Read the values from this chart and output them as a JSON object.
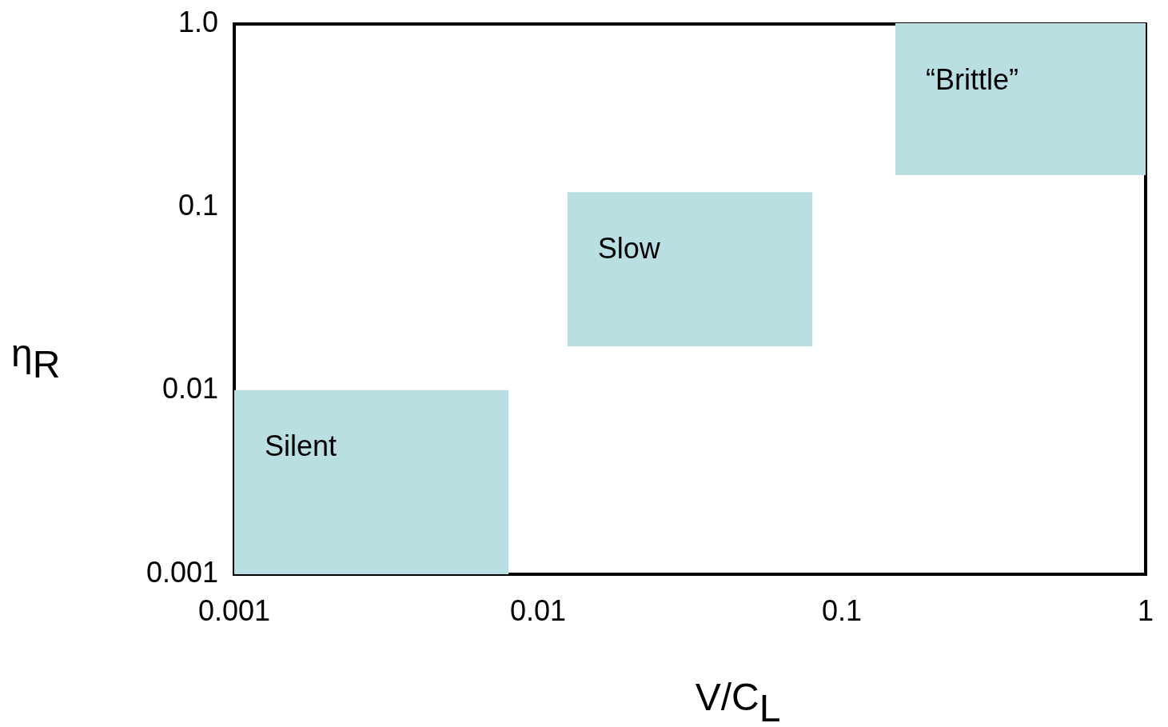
{
  "chart_data": {
    "type": "line",
    "xlabel": "V/C$_{L}$",
    "ylabel": "η$_{R}$",
    "log": "xy",
    "grid": false,
    "xlim": [
      0.001,
      1
    ],
    "xticks": [
      0.001,
      0.01,
      0.1,
      1
    ],
    "ylim": [
      0.001,
      1
    ],
    "yticks": [
      0.001,
      0.01,
      0.1,
      {
        "value": 1,
        "label": "1.0"
      }
    ],
    "series": [
      {
        "color": "#b9dfe2",
        "x": [
          0.001,
          0.008
        ],
        "values": [
          0.01,
          0.01
        ],
        "lower": [
          0.001,
          0.001
        ],
        "upper": [
          0.01,
          0.01
        ]
      },
      {
        "color": "#b9dfe2",
        "x": [
          0.0125,
          0.08
        ],
        "values": [
          0.12,
          0.12
        ],
        "lower": [
          0.0175,
          0.0175
        ],
        "upper": [
          0.12,
          0.12
        ]
      },
      {
        "color": "#b9dfe2",
        "x": [
          0.15,
          1
        ],
        "values": [
          1,
          1
        ],
        "lower": [
          0.15,
          0.15
        ],
        "upper": [
          1,
          1
        ]
      }
    ],
    "annotations": [
      "Silent",
      "Slow",
      "“Brittle”"
    ]
  }
}
